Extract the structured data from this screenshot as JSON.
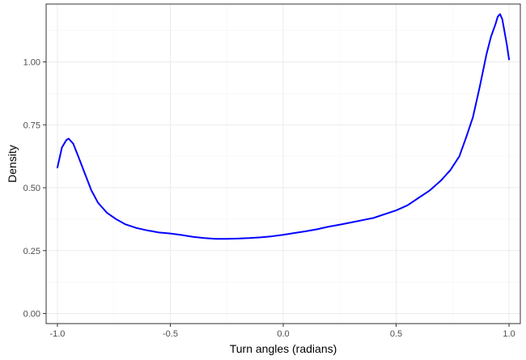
{
  "chart_data": {
    "type": "line",
    "title": "",
    "xlabel": "Turn angles (radians)",
    "ylabel": "Density",
    "xlim": [
      -1.05,
      1.05
    ],
    "ylim": [
      -0.04,
      1.23
    ],
    "x_ticks": [
      -1.0,
      -0.5,
      0.0,
      0.5,
      1.0
    ],
    "x_tick_labels": [
      "-1.0",
      "-0.5",
      "0.0",
      "0.5",
      "1.0"
    ],
    "y_ticks": [
      0.0,
      0.25,
      0.5,
      0.75,
      1.0
    ],
    "y_tick_labels": [
      "0.00",
      "0.25",
      "0.50",
      "0.75",
      "1.00"
    ],
    "grid": true,
    "series": [
      {
        "color": "#0000ff",
        "x": [
          -1.0,
          -0.98,
          -0.96,
          -0.95,
          -0.93,
          -0.91,
          -0.88,
          -0.85,
          -0.82,
          -0.78,
          -0.74,
          -0.7,
          -0.65,
          -0.6,
          -0.55,
          -0.5,
          -0.45,
          -0.4,
          -0.35,
          -0.3,
          -0.25,
          -0.2,
          -0.15,
          -0.1,
          -0.05,
          0.0,
          0.05,
          0.1,
          0.15,
          0.2,
          0.25,
          0.3,
          0.35,
          0.4,
          0.45,
          0.5,
          0.55,
          0.6,
          0.65,
          0.7,
          0.74,
          0.78,
          0.81,
          0.84,
          0.87,
          0.9,
          0.92,
          0.94,
          0.95,
          0.96,
          0.97,
          0.98,
          0.99,
          1.0
        ],
        "y": [
          0.58,
          0.66,
          0.69,
          0.695,
          0.675,
          0.63,
          0.56,
          0.49,
          0.44,
          0.4,
          0.375,
          0.355,
          0.34,
          0.33,
          0.322,
          0.318,
          0.312,
          0.305,
          0.3,
          0.297,
          0.297,
          0.298,
          0.3,
          0.303,
          0.307,
          0.313,
          0.32,
          0.327,
          0.335,
          0.345,
          0.353,
          0.362,
          0.371,
          0.38,
          0.395,
          0.41,
          0.43,
          0.46,
          0.49,
          0.53,
          0.57,
          0.625,
          0.7,
          0.78,
          0.9,
          1.03,
          1.1,
          1.15,
          1.18,
          1.19,
          1.17,
          1.12,
          1.07,
          1.01
        ]
      }
    ]
  },
  "colors": {
    "panel_background": "#ffffff",
    "panel_border": "#333333",
    "grid_major": "#ebebeb",
    "grid_minor": "#f5f5f5",
    "line": "#0000ff"
  }
}
